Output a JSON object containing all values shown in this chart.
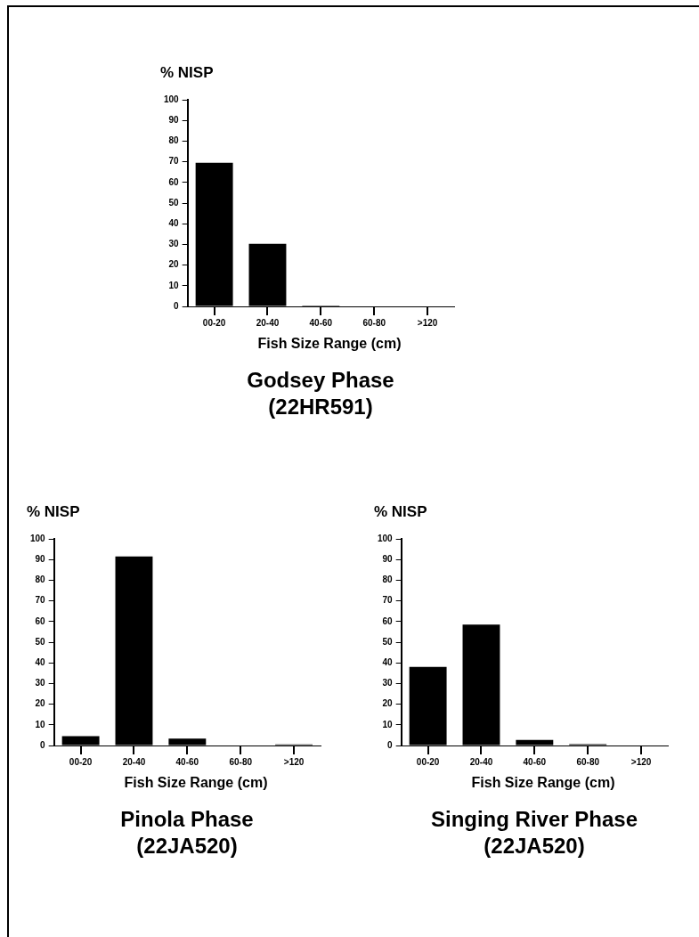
{
  "chart_data": [
    {
      "type": "bar",
      "title": "Godsey Phase",
      "subtitle": "(22HR591)",
      "xlabel": "Fish Size Range (cm)",
      "ylabel": "% NISP",
      "categories": [
        "00-20",
        "20-40",
        "40-60",
        "60-80",
        ">120"
      ],
      "values": [
        69.5,
        30.3,
        0.4,
        0,
        0
      ],
      "color": "#000000",
      "ylim": [
        0,
        100
      ],
      "yticks": [
        0,
        10,
        20,
        30,
        40,
        50,
        60,
        70,
        80,
        90,
        100
      ]
    },
    {
      "type": "bar",
      "title": "Pinola Phase",
      "subtitle": "(22JA520)",
      "xlabel": "Fish Size Range (cm)",
      "ylabel": "% NISP",
      "categories": [
        "00-20",
        "20-40",
        "40-60",
        "60-80",
        ">120"
      ],
      "values": [
        4.5,
        91.5,
        3.3,
        0,
        0.5
      ],
      "color": "#000000",
      "ylim": [
        0,
        100
      ],
      "yticks": [
        0,
        10,
        20,
        30,
        40,
        50,
        60,
        70,
        80,
        90,
        100
      ]
    },
    {
      "type": "bar",
      "title": "Singing River Phase",
      "subtitle": "(22JA520)",
      "xlabel": "Fish Size Range (cm)",
      "ylabel": "% NISP",
      "categories": [
        "00-20",
        "20-40",
        "40-60",
        "60-80",
        ">120"
      ],
      "values": [
        38,
        58.5,
        2.7,
        0.6,
        0
      ],
      "color": "#000000",
      "ylim": [
        0,
        100
      ],
      "yticks": [
        0,
        10,
        20,
        30,
        40,
        50,
        60,
        70,
        80,
        90,
        100
      ]
    }
  ]
}
